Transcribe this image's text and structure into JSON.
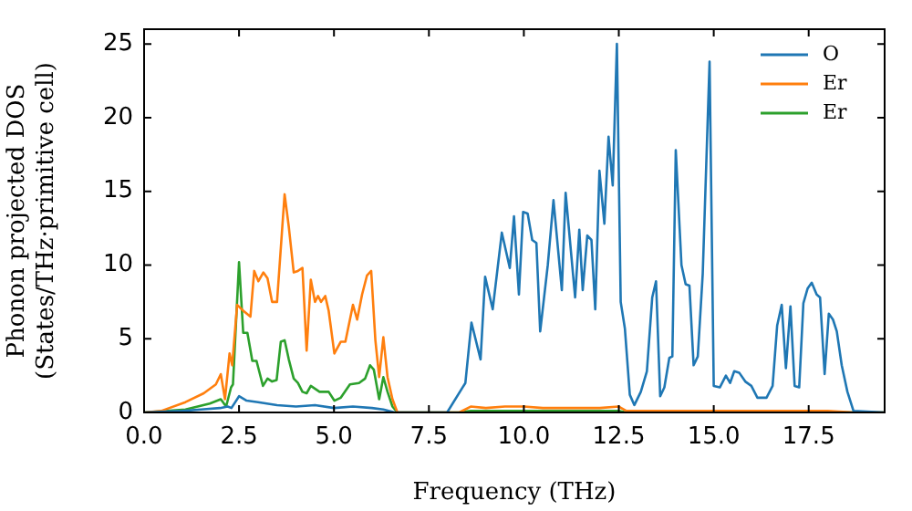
{
  "chart_data": {
    "type": "line",
    "xlabel": "Frequency (THz)",
    "ylabel": "Phonon projected DOS\n(States/THz·primitive cell)",
    "xlim": [
      0,
      19.5
    ],
    "ylim": [
      0,
      26
    ],
    "xticks": [
      {
        "value": 0,
        "label": "0.0"
      },
      {
        "value": 2.5,
        "label": "2.5"
      },
      {
        "value": 5,
        "label": "5.0"
      },
      {
        "value": 7.5,
        "label": "7.5"
      },
      {
        "value": 10,
        "label": "10.0"
      },
      {
        "value": 12.5,
        "label": "12.5"
      },
      {
        "value": 15,
        "label": "15.0"
      },
      {
        "value": 17.5,
        "label": "17.5"
      }
    ],
    "yticks": [
      0,
      5,
      10,
      15,
      20,
      25
    ],
    "grid": false,
    "legend": "top right",
    "marker": "none",
    "line_style": "solid",
    "series": [
      {
        "name": "O",
        "color": "#1f77b4",
        "x": [
          0,
          1,
          1.5,
          2,
          2.2,
          2.3,
          2.5,
          2.7,
          3,
          3.5,
          4,
          4.5,
          5,
          5.5,
          6,
          6.3,
          6.6,
          7.98,
          8.46,
          8.62,
          8.86,
          8.98,
          9.18,
          9.42,
          9.63,
          9.74,
          9.87,
          9.98,
          10.1,
          10.22,
          10.33,
          10.43,
          10.63,
          10.78,
          11.0,
          11.1,
          11.35,
          11.46,
          11.55,
          11.67,
          11.78,
          11.88,
          11.99,
          12.12,
          12.23,
          12.34,
          12.45,
          12.55,
          12.66,
          12.79,
          12.91,
          13.08,
          13.24,
          13.38,
          13.48,
          13.59,
          13.7,
          13.83,
          13.91,
          14.0,
          14.15,
          14.26,
          14.36,
          14.47,
          14.58,
          14.71,
          14.89,
          15.0,
          15.16,
          15.32,
          15.43,
          15.54,
          15.67,
          15.83,
          15.99,
          16.15,
          16.39,
          16.55,
          16.67,
          16.79,
          16.9,
          17.02,
          17.13,
          17.25,
          17.36,
          17.47,
          17.58,
          17.71,
          17.8,
          17.92,
          18.03,
          18.14,
          18.24,
          18.37,
          18.52,
          18.68,
          19.5
        ],
        "values": [
          0,
          0.1,
          0.2,
          0.3,
          0.4,
          0.3,
          1.1,
          0.8,
          0.7,
          0.5,
          0.4,
          0.5,
          0.3,
          0.4,
          0.3,
          0.2,
          0,
          0,
          2.0,
          6.1,
          3.6,
          9.2,
          7.0,
          12.2,
          9.8,
          13.3,
          8.0,
          13.6,
          13.5,
          11.7,
          11.5,
          5.5,
          10.0,
          14.4,
          8.3,
          14.9,
          7.8,
          12.4,
          8.3,
          12.0,
          11.7,
          7.0,
          16.4,
          12.8,
          18.7,
          15.4,
          25.0,
          7.5,
          5.7,
          1.2,
          0.5,
          1.4,
          2.8,
          7.8,
          8.9,
          1.1,
          1.7,
          3.7,
          3.8,
          17.8,
          10.0,
          8.7,
          8.6,
          3.2,
          3.8,
          9.4,
          23.8,
          1.8,
          1.7,
          2.5,
          2.0,
          2.8,
          2.7,
          2.1,
          1.8,
          1.0,
          1.0,
          1.8,
          5.9,
          7.3,
          3.0,
          7.2,
          1.8,
          1.7,
          7.4,
          8.4,
          8.8,
          8.0,
          7.8,
          2.6,
          6.7,
          6.3,
          5.5,
          3.2,
          1.4,
          0.1,
          0
        ]
      },
      {
        "name": "Er",
        "color": "#ff7f0e",
        "x": [
          0,
          0.45,
          1.09,
          1.57,
          1.89,
          2.02,
          2.13,
          2.25,
          2.32,
          2.45,
          2.61,
          2.8,
          2.9,
          3.01,
          3.14,
          3.25,
          3.37,
          3.5,
          3.7,
          3.81,
          3.94,
          4.05,
          4.17,
          4.28,
          4.39,
          4.5,
          4.58,
          4.66,
          4.77,
          4.86,
          5.01,
          5.18,
          5.3,
          5.5,
          5.61,
          5.74,
          5.87,
          5.98,
          6.09,
          6.19,
          6.3,
          6.41,
          6.54,
          6.67,
          8.3,
          8.6,
          9.0,
          9.5,
          10.0,
          10.5,
          11.0,
          11.5,
          12.0,
          12.5,
          12.7,
          13.5,
          15.0,
          16.5,
          18.0,
          18.7,
          19.5
        ],
        "values": [
          0,
          0.1,
          0.7,
          1.3,
          1.9,
          2.6,
          0.9,
          4.0,
          3.2,
          7.3,
          6.9,
          6.5,
          9.6,
          8.9,
          9.5,
          9.1,
          7.5,
          7.5,
          14.8,
          12.6,
          9.5,
          9.6,
          9.8,
          4.2,
          9.0,
          7.5,
          7.9,
          7.5,
          7.9,
          6.9,
          4.0,
          4.8,
          4.8,
          7.3,
          6.3,
          8.0,
          9.3,
          9.6,
          4.9,
          2.4,
          5.1,
          2.4,
          0.9,
          0,
          0,
          0.4,
          0.3,
          0.4,
          0.4,
          0.3,
          0.3,
          0.3,
          0.3,
          0.4,
          0.1,
          0.1,
          0.1,
          0.1,
          0.1,
          0,
          0
        ]
      },
      {
        "name": "Er",
        "color": "#2ca02c",
        "x": [
          0,
          1.09,
          1.73,
          2.02,
          2.16,
          2.29,
          2.34,
          2.5,
          2.61,
          2.72,
          2.85,
          2.96,
          3.05,
          3.13,
          3.25,
          3.37,
          3.49,
          3.6,
          3.7,
          3.81,
          3.94,
          4.05,
          4.17,
          4.28,
          4.39,
          4.62,
          4.86,
          5.01,
          5.18,
          5.42,
          5.66,
          5.82,
          5.95,
          6.05,
          6.19,
          6.3,
          6.41,
          6.54,
          6.67,
          8.3,
          8.6,
          10.0,
          12.5,
          12.7,
          19.5
        ],
        "values": [
          0,
          0.2,
          0.6,
          0.9,
          0.4,
          1.7,
          1.9,
          10.2,
          5.4,
          5.4,
          3.5,
          3.5,
          2.6,
          1.8,
          2.3,
          2.1,
          2.2,
          4.8,
          4.9,
          3.6,
          2.3,
          2.0,
          1.4,
          1.3,
          1.8,
          1.4,
          1.4,
          0.8,
          1.0,
          1.9,
          2.0,
          2.3,
          3.2,
          2.9,
          0.9,
          2.4,
          1.4,
          0.4,
          0,
          0,
          0.1,
          0.1,
          0.1,
          0,
          0
        ]
      }
    ]
  }
}
